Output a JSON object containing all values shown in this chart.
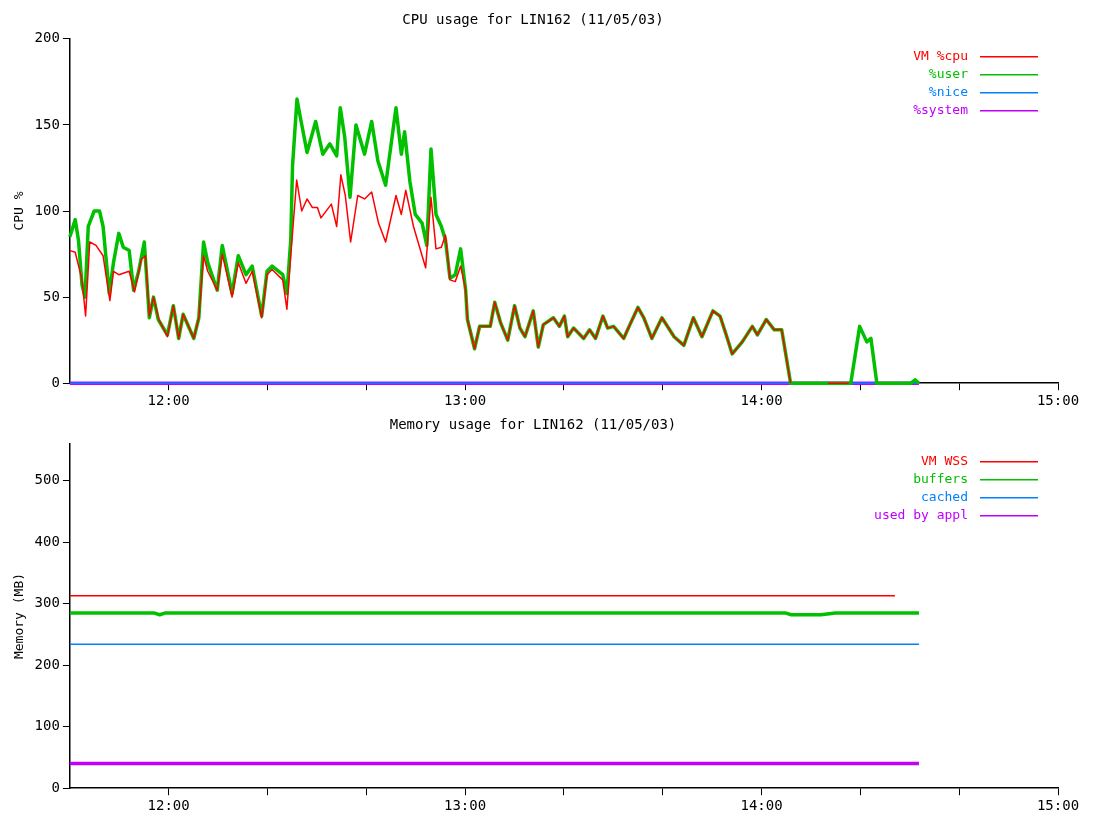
{
  "chart_data": [
    {
      "type": "line",
      "title": "CPU usage for LIN162 (11/05/03)",
      "ylabel": "CPU %",
      "xlim": [
        11.667,
        15
      ],
      "xticks": [
        {
          "value": 12,
          "label": "12:00"
        },
        {
          "value": 12.333,
          "label": null
        },
        {
          "value": 12.667,
          "label": null
        },
        {
          "value": 13,
          "label": "13:00"
        },
        {
          "value": 13.333,
          "label": null
        },
        {
          "value": 13.667,
          "label": null
        },
        {
          "value": 14,
          "label": "14:00"
        },
        {
          "value": 14.333,
          "label": null
        },
        {
          "value": 14.667,
          "label": null
        },
        {
          "value": 15,
          "label": "15:00"
        }
      ],
      "ylim": [
        0,
        200
      ],
      "yticks": [
        0,
        50,
        100,
        150,
        200
      ],
      "grid": false,
      "legend": "top right",
      "marker": "none",
      "line_style": "solid",
      "series": [
        {
          "name": "VM %cpu",
          "color": "#ff0000",
          "x": [
            11.667,
            11.685,
            11.708,
            11.72,
            11.734,
            11.755,
            11.779,
            11.802,
            11.814,
            11.832,
            11.867,
            11.885,
            11.908,
            11.922,
            11.935,
            11.949,
            11.967,
            11.996,
            12.016,
            12.034,
            12.049,
            12.085,
            12.102,
            12.118,
            12.132,
            12.164,
            12.181,
            12.214,
            12.235,
            12.261,
            12.282,
            12.314,
            12.332,
            12.349,
            12.385,
            12.399,
            12.412,
            12.432,
            12.449,
            12.467,
            12.485,
            12.502,
            12.514,
            12.549,
            12.567,
            12.581,
            12.596,
            12.614,
            12.638,
            12.661,
            12.685,
            12.708,
            12.732,
            12.767,
            12.785,
            12.8,
            12.826,
            12.867,
            12.885,
            12.902,
            12.92,
            12.934,
            12.949,
            12.967,
            12.985,
            13.002,
            13.008,
            13.032,
            13.049,
            13.085,
            13.1,
            13.12,
            13.144,
            13.167,
            13.185,
            13.202,
            13.23,
            13.247,
            13.264,
            13.298,
            13.318,
            13.335,
            13.346,
            13.366,
            13.4,
            13.42,
            13.44,
            13.465,
            13.481,
            13.501,
            13.535,
            13.556,
            13.583,
            13.603,
            13.63,
            13.664,
            13.705,
            13.738,
            13.77,
            13.799,
            13.836,
            13.86,
            13.881,
            13.901,
            13.935,
            13.969,
            13.986,
            14.016,
            14.043,
            14.068,
            14.098,
            14.16,
            14.224,
            14.294
          ],
          "values": [
            77,
            76,
            60,
            39,
            82,
            80,
            74,
            48,
            65,
            63,
            65,
            53,
            72,
            74,
            39,
            50,
            37,
            27,
            45,
            26,
            40,
            26,
            38,
            74,
            65,
            54,
            75,
            50,
            70,
            58,
            65,
            38,
            63,
            66,
            60,
            43,
            74,
            118,
            100,
            107,
            102,
            102,
            96,
            104,
            91,
            121,
            109,
            82,
            109,
            107,
            111,
            93,
            82,
            109,
            98,
            112,
            91,
            67,
            108,
            78,
            79,
            86,
            60,
            59,
            68,
            54,
            37,
            20,
            33,
            33,
            47,
            35,
            25,
            45,
            32,
            27,
            42,
            21,
            34,
            38,
            33,
            39,
            27,
            32,
            26,
            31,
            26,
            39,
            32,
            33,
            26,
            34,
            44,
            38,
            26,
            38,
            27,
            22,
            38,
            27,
            42,
            39,
            28,
            17,
            24,
            33,
            28,
            37,
            31,
            31,
            0,
            null,
            0,
            0
          ]
        },
        {
          "name": "%user",
          "color": "#00c000",
          "x": [
            11.667,
            11.685,
            11.696,
            11.708,
            11.718,
            11.729,
            11.749,
            11.767,
            11.779,
            11.8,
            11.814,
            11.832,
            11.847,
            11.867,
            11.882,
            11.899,
            11.918,
            11.935,
            11.949,
            11.965,
            11.996,
            12.016,
            12.034,
            12.049,
            12.085,
            12.102,
            12.118,
            12.132,
            12.164,
            12.181,
            12.214,
            12.235,
            12.261,
            12.282,
            12.314,
            12.332,
            12.349,
            12.385,
            12.399,
            12.412,
            12.418,
            12.433,
            12.447,
            12.467,
            12.496,
            12.52,
            12.544,
            12.567,
            12.579,
            12.594,
            12.612,
            12.632,
            12.661,
            12.685,
            12.706,
            12.732,
            12.767,
            12.785,
            12.796,
            12.814,
            12.832,
            12.855,
            12.871,
            12.885,
            12.902,
            12.92,
            12.934,
            12.949,
            12.967,
            12.985,
            13.002,
            13.008,
            13.032,
            13.049,
            13.085,
            13.1,
            13.12,
            13.144,
            13.167,
            13.185,
            13.202,
            13.23,
            13.247,
            13.264,
            13.298,
            13.318,
            13.335,
            13.346,
            13.366,
            13.4,
            13.42,
            13.44,
            13.465,
            13.481,
            13.501,
            13.535,
            13.556,
            13.583,
            13.603,
            13.63,
            13.664,
            13.705,
            13.738,
            13.77,
            13.799,
            13.836,
            13.86,
            13.881,
            13.901,
            13.935,
            13.969,
            13.986,
            14.016,
            14.043,
            14.068,
            14.098,
            14.301,
            14.331,
            14.355,
            14.369,
            14.389,
            14.504,
            14.518,
            14.531
          ],
          "values": [
            85,
            95,
            83,
            57,
            50,
            91,
            100,
            100,
            91,
            52,
            70,
            87,
            79,
            77,
            54,
            65,
            82,
            38,
            50,
            37,
            28,
            45,
            26,
            40,
            26,
            38,
            82,
            70,
            54,
            80,
            52,
            74,
            63,
            68,
            39,
            65,
            68,
            63,
            52,
            83,
            126,
            165,
            152,
            134,
            152,
            133,
            139,
            132,
            160,
            143,
            108,
            150,
            133,
            152,
            129,
            115,
            160,
            133,
            146,
            117,
            98,
            93,
            80,
            136,
            98,
            91,
            83,
            61,
            63,
            78,
            54,
            37,
            20,
            33,
            33,
            47,
            35,
            25,
            45,
            32,
            27,
            42,
            21,
            34,
            38,
            33,
            39,
            27,
            32,
            26,
            31,
            26,
            39,
            32,
            33,
            26,
            34,
            44,
            38,
            26,
            38,
            27,
            22,
            38,
            27,
            42,
            39,
            28,
            17,
            24,
            33,
            28,
            37,
            31,
            31,
            0,
            0,
            33,
            24,
            26,
            0,
            0,
            2,
            0
          ]
        },
        {
          "name": "%nice",
          "color": "#0080ff",
          "x": [
            11.667,
            14.531
          ],
          "values": [
            0,
            0
          ]
        },
        {
          "name": "%system",
          "color": "#c000ff",
          "x": [
            11.667,
            14.531
          ],
          "values": [
            0,
            0
          ]
        }
      ]
    },
    {
      "type": "line",
      "title": "Memory usage for LIN162 (11/05/03)",
      "ylabel": "Memory (MB)",
      "xlim": [
        11.667,
        15
      ],
      "xticks": [
        {
          "value": 12,
          "label": "12:00"
        },
        {
          "value": 12.333,
          "label": null
        },
        {
          "value": 12.667,
          "label": null
        },
        {
          "value": 13,
          "label": "13:00"
        },
        {
          "value": 13.333,
          "label": null
        },
        {
          "value": 13.667,
          "label": null
        },
        {
          "value": 14,
          "label": "14:00"
        },
        {
          "value": 14.333,
          "label": null
        },
        {
          "value": 14.667,
          "label": null
        },
        {
          "value": 15,
          "label": "15:00"
        }
      ],
      "ylim": [
        0,
        560
      ],
      "yticks": [
        0,
        100,
        200,
        300,
        400,
        500
      ],
      "grid": false,
      "legend": "top right",
      "marker": "none",
      "line_style": "solid",
      "series": [
        {
          "name": "VM WSS",
          "color": "#ff0000",
          "x": [
            11.667,
            14.45
          ],
          "values": [
            313,
            313
          ]
        },
        {
          "name": "buffers",
          "color": "#00c000",
          "x": [
            11.667,
            11.95,
            11.97,
            11.99,
            14.08,
            14.1,
            14.2,
            14.25,
            14.531
          ],
          "values": [
            285,
            285,
            282,
            285,
            285,
            282,
            282,
            285,
            285
          ]
        },
        {
          "name": "cached",
          "color": "#0080ff",
          "x": [
            11.667,
            14.531
          ],
          "values": [
            234,
            234
          ]
        },
        {
          "name": "used by appl",
          "color": "#c000ff",
          "x": [
            11.667,
            14.531
          ],
          "values": [
            40,
            40
          ]
        }
      ]
    }
  ]
}
